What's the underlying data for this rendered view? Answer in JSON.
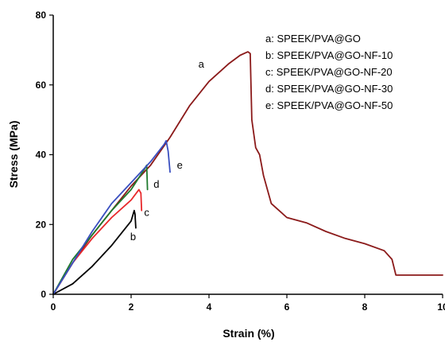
{
  "chart_data": {
    "type": "line",
    "xlabel": "Strain (%)",
    "ylabel": "Stress (MPa)",
    "xlim": [
      0,
      10
    ],
    "ylim": [
      0,
      80
    ],
    "x_ticks": [
      "0",
      "2",
      "4",
      "6",
      "8",
      "10"
    ],
    "y_ticks": [
      "0",
      "20",
      "40",
      "60",
      "80"
    ],
    "grid": false,
    "legend_position": "top-right",
    "legend": [
      "a: SPEEK/PVA@GO",
      "b: SPEEK/PVA@GO-NF-10",
      "c: SPEEK/PVA@GO-NF-20",
      "d: SPEEK/PVA@GO-NF-30",
      "e: SPEEK/PVA@GO-NF-50"
    ],
    "series": [
      {
        "name": "a",
        "color": "#8b1a1a",
        "x": [
          0,
          0.5,
          1.0,
          1.5,
          2.0,
          2.5,
          3.0,
          3.5,
          4.0,
          4.5,
          4.8,
          5.0,
          5.06,
          5.1,
          5.2,
          5.3,
          5.4,
          5.5,
          5.6,
          5.8,
          6.0,
          6.5,
          7.0,
          7.5,
          8.0,
          8.5,
          8.7,
          8.8,
          9.0,
          9.5,
          10.0
        ],
        "y": [
          0,
          9,
          17,
          24,
          31,
          37,
          45,
          54,
          61,
          66,
          68.5,
          69.5,
          69,
          50,
          42,
          40,
          34,
          30,
          26,
          24,
          22,
          20.5,
          18,
          16,
          14.5,
          12.5,
          10,
          5.5,
          5.5,
          5.5,
          5.5
        ]
      },
      {
        "name": "b",
        "color": "#000000",
        "x": [
          0,
          0.5,
          1.0,
          1.5,
          2.0,
          2.08,
          2.1,
          2.12
        ],
        "y": [
          0,
          3,
          8,
          14,
          21,
          24,
          23,
          19
        ]
      },
      {
        "name": "c",
        "color": "#e8282b",
        "x": [
          0,
          0.5,
          1.0,
          1.5,
          2.0,
          2.2,
          2.25,
          2.27
        ],
        "y": [
          0,
          9,
          16,
          22,
          27,
          30,
          29,
          24
        ]
      },
      {
        "name": "d",
        "color": "#1f7a2e",
        "x": [
          0,
          0.5,
          1.0,
          1.5,
          2.0,
          2.35,
          2.4,
          2.42
        ],
        "y": [
          0,
          10,
          17,
          24,
          30,
          36,
          37,
          30
        ]
      },
      {
        "name": "e",
        "color": "#3a4fc0",
        "x": [
          0,
          0.5,
          1.0,
          1.5,
          2.0,
          2.5,
          2.85,
          2.9,
          2.95,
          3.0
        ],
        "y": [
          0,
          9,
          18,
          26,
          32,
          38,
          43,
          44,
          41,
          35
        ]
      }
    ],
    "curve_labels": [
      {
        "text": "a",
        "x": 3.8,
        "y": 65
      },
      {
        "text": "b",
        "x": 2.05,
        "y": 15.5
      },
      {
        "text": "c",
        "x": 2.4,
        "y": 22.5
      },
      {
        "text": "d",
        "x": 2.65,
        "y": 30.5
      },
      {
        "text": "e",
        "x": 3.25,
        "y": 36
      }
    ]
  }
}
